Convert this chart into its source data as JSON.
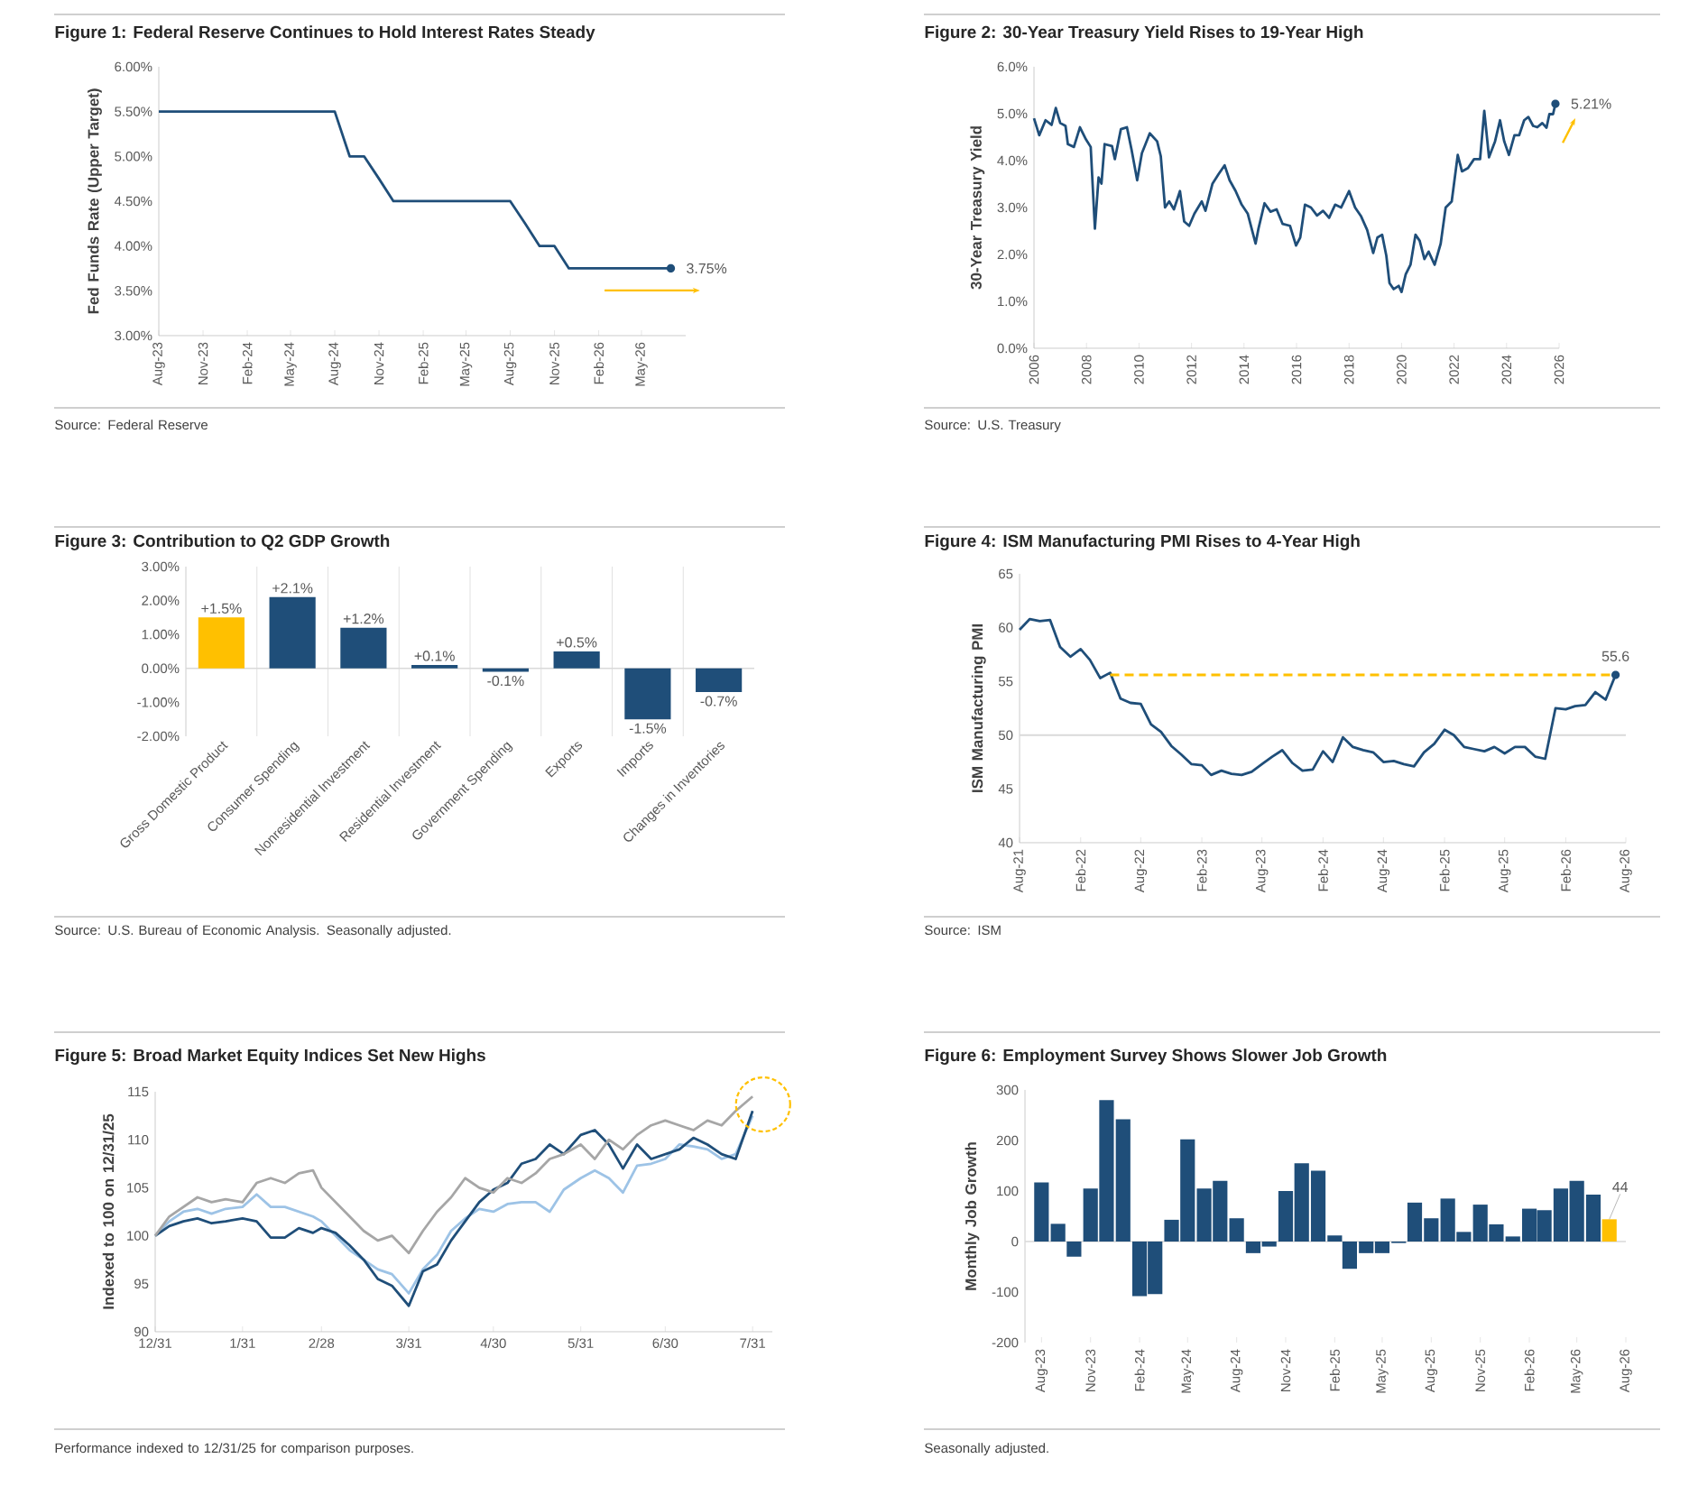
{
  "chart_data": [
    {
      "type": "line",
      "title": "Figure 1: Federal Reserve Continues to Hold Interest Rates Steady",
      "ylabel": "Fed Funds Rate (Upper Target)",
      "x": [
        "2023-08",
        "2023-09",
        "2023-10",
        "2023-11",
        "2023-12",
        "2024-01",
        "2024-02",
        "2024-03",
        "2024-04",
        "2024-05",
        "2024-06",
        "2024-07",
        "2024-08",
        "2024-09",
        "2024-10",
        "2024-11",
        "2024-12",
        "2025-01",
        "2025-02",
        "2025-03",
        "2025-04",
        "2025-05",
        "2025-06",
        "2025-07",
        "2025-08",
        "2025-09",
        "2025-10",
        "2025-11",
        "2025-12",
        "2026-01",
        "2026-02",
        "2026-03",
        "2026-04",
        "2026-05",
        "2026-06",
        "2026-07"
      ],
      "series": [
        {
          "color": "#1f4e79",
          "values": [
            5.5,
            5.5,
            5.5,
            5.5,
            5.5,
            5.5,
            5.5,
            5.5,
            5.5,
            5.5,
            5.5,
            5.5,
            5.5,
            5.0,
            5.0,
            4.75,
            4.5,
            4.5,
            4.5,
            4.5,
            4.5,
            4.5,
            4.5,
            4.5,
            4.5,
            4.25,
            4.0,
            4.0,
            3.75,
            3.75,
            3.75,
            3.75,
            3.75,
            3.75,
            3.75,
            3.75
          ]
        }
      ],
      "xlim": [
        "2023-08",
        "2026-08"
      ],
      "xticks": [
        {
          "value": "2023-08",
          "label": "Aug-23"
        },
        {
          "value": "2023-11",
          "label": "Nov-23"
        },
        {
          "value": "2024-02",
          "label": "Feb-24"
        },
        {
          "value": "2024-05",
          "label": "May-24"
        },
        {
          "value": "2024-08",
          "label": "Aug-24"
        },
        {
          "value": "2024-11",
          "label": "Nov-24"
        },
        {
          "value": "2025-02",
          "label": "Feb-25"
        },
        {
          "value": "2025-05",
          "label": "May-25"
        },
        {
          "value": "2025-08",
          "label": "Aug-25"
        },
        {
          "value": "2025-11",
          "label": "Nov-25"
        },
        {
          "value": "2026-02",
          "label": "Feb-26"
        },
        {
          "value": "2026-05",
          "label": "May-26"
        }
      ],
      "ylim": [
        3,
        6
      ],
      "yticks": [
        {
          "value": 3,
          "label": "3.00%"
        },
        {
          "value": 3.5,
          "label": "3.50%"
        },
        {
          "value": 4,
          "label": "4.00%"
        },
        {
          "value": 4.5,
          "label": "4.50%"
        },
        {
          "value": 5,
          "label": "5.00%"
        },
        {
          "value": 5.5,
          "label": "5.50%"
        },
        {
          "value": 6,
          "label": "6.00%"
        }
      ],
      "annotations": [
        {
          "text": "3.75%",
          "x": "2026-07",
          "y": 3.75
        },
        "Source: Federal Reserve"
      ]
    },
    {
      "type": "line",
      "title": "Figure 2: 30-Year Treasury Yield Rises to 19-Year High",
      "ylabel": "30-Year Treasury Yield",
      "x": [
        2006.0,
        2006.2,
        2006.44,
        2006.67,
        2006.83,
        2007.0,
        2007.2,
        2007.29,
        2007.52,
        2007.75,
        2007.98,
        2008.16,
        2008.32,
        2008.46,
        2008.57,
        2008.69,
        2008.97,
        2009.08,
        2009.31,
        2009.54,
        2009.72,
        2009.93,
        2010.11,
        2010.41,
        2010.69,
        2010.83,
        2010.99,
        2011.15,
        2011.33,
        2011.56,
        2011.72,
        2011.91,
        2012.11,
        2012.39,
        2012.53,
        2012.8,
        2013.03,
        2013.26,
        2013.45,
        2013.68,
        2013.91,
        2014.14,
        2014.44,
        2014.55,
        2014.78,
        2015.01,
        2015.24,
        2015.47,
        2015.75,
        2015.98,
        2016.14,
        2016.32,
        2016.55,
        2016.78,
        2017.01,
        2017.24,
        2017.47,
        2017.7,
        2018.0,
        2018.23,
        2018.46,
        2018.69,
        2018.92,
        2019.08,
        2019.26,
        2019.42,
        2019.54,
        2019.7,
        2019.89,
        2020.0,
        2020.16,
        2020.34,
        2020.53,
        2020.69,
        2020.87,
        2021.03,
        2021.26,
        2021.49,
        2021.68,
        2021.91,
        2022.14,
        2022.3,
        2022.53,
        2022.76,
        2022.99,
        2023.15,
        2023.33,
        2023.56,
        2023.75,
        2023.91,
        2024.09,
        2024.3,
        2024.48,
        2024.67,
        2024.83,
        2025.01,
        2025.17,
        2025.36,
        2025.52,
        2025.63,
        2025.77,
        2025.86
      ],
      "series": [
        {
          "color": "#1f4e79",
          "values": [
            4.9,
            4.54,
            4.86,
            4.76,
            5.12,
            4.8,
            4.74,
            4.35,
            4.29,
            4.71,
            4.45,
            4.29,
            2.55,
            3.64,
            3.51,
            4.35,
            4.31,
            4.03,
            4.67,
            4.71,
            4.22,
            3.58,
            4.16,
            4.58,
            4.41,
            4.09,
            3.0,
            3.13,
            2.96,
            3.35,
            2.7,
            2.61,
            2.87,
            3.13,
            2.93,
            3.51,
            3.71,
            3.9,
            3.58,
            3.35,
            3.06,
            2.87,
            2.23,
            2.55,
            3.09,
            2.91,
            2.96,
            2.65,
            2.61,
            2.19,
            2.36,
            3.06,
            3.0,
            2.83,
            2.93,
            2.78,
            3.06,
            3.0,
            3.35,
            3.0,
            2.81,
            2.52,
            2.03,
            2.36,
            2.42,
            1.97,
            1.39,
            1.26,
            1.33,
            1.2,
            1.58,
            1.78,
            2.42,
            2.29,
            1.9,
            2.06,
            1.78,
            2.23,
            3.0,
            3.13,
            4.12,
            3.77,
            3.84,
            4.03,
            4.03,
            5.06,
            4.07,
            4.41,
            4.86,
            4.41,
            4.12,
            4.54,
            4.54,
            4.86,
            4.93,
            4.74,
            4.71,
            4.8,
            4.7,
            4.99,
            4.99,
            5.21
          ]
        }
      ],
      "xlim": [
        2006,
        2026
      ],
      "xticks": [
        2006,
        2008,
        2010,
        2012,
        2014,
        2016,
        2018,
        2020,
        2022,
        2024,
        2026
      ],
      "ylim": [
        0,
        6
      ],
      "yticks": [
        {
          "value": 0,
          "label": "0.0%"
        },
        {
          "value": 1,
          "label": "1.0%"
        },
        {
          "value": 2,
          "label": "2.0%"
        },
        {
          "value": 3,
          "label": "3.0%"
        },
        {
          "value": 4,
          "label": "4.0%"
        },
        {
          "value": 5,
          "label": "5.0%"
        },
        {
          "value": 6,
          "label": "6.0%"
        }
      ],
      "annotations": [
        {
          "text": "5.21%",
          "x": 2025.86,
          "y": 5.21
        },
        "Source: U.S. Treasury"
      ]
    },
    {
      "type": "bar",
      "title": "Figure 3: Contribution to Q2 GDP Growth",
      "categories": [
        "Gross Domestic Product",
        "Consumer Spending",
        "Nonresidential Investment",
        "Residential Investment",
        "Government Spending",
        "Exports",
        "Imports",
        "Changes in Inventories"
      ],
      "values": [
        1.5,
        2.1,
        1.2,
        0.1,
        -0.1,
        0.5,
        -1.5,
        -0.7
      ],
      "colors": [
        "#ffc000",
        "#1f4e79",
        "#1f4e79",
        "#1f4e79",
        "#1f4e79",
        "#1f4e79",
        "#1f4e79",
        "#1f4e79"
      ],
      "value_labels": [
        "+1.5%",
        "+2.1%",
        "+1.2%",
        "+0.1%",
        "-0.1%",
        "+0.5%",
        "-1.5%",
        "-0.7%"
      ],
      "ylim": [
        -2,
        3
      ],
      "yticks": [
        {
          "value": -2,
          "label": "-2.00%"
        },
        {
          "value": -1,
          "label": "-1.00%"
        },
        {
          "value": 0,
          "label": "0.00%"
        },
        {
          "value": 1,
          "label": "1.00%"
        },
        {
          "value": 2,
          "label": "2.00%"
        },
        {
          "value": 3,
          "label": "3.00%"
        }
      ],
      "grid": "x",
      "annotations": [
        "Source: U.S. Bureau of Economic Analysis. Seasonally adjusted."
      ]
    },
    {
      "type": "line",
      "title": "Figure 4: ISM Manufacturing PMI Rises to 4-Year High",
      "ylabel": "ISM Manufacturing PMI",
      "x": [
        "2021-08",
        "2021-09",
        "2021-10",
        "2021-11",
        "2021-12",
        "2022-01",
        "2022-02",
        "2022-03",
        "2022-04",
        "2022-05",
        "2022-06",
        "2022-07",
        "2022-08",
        "2022-09",
        "2022-10",
        "2022-11",
        "2022-12",
        "2023-01",
        "2023-02",
        "2023-03",
        "2023-04",
        "2023-05",
        "2023-06",
        "2023-07",
        "2023-08",
        "2023-09",
        "2023-10",
        "2023-11",
        "2023-12",
        "2024-01",
        "2024-02",
        "2024-03",
        "2024-04",
        "2024-05",
        "2024-06",
        "2024-07",
        "2024-08",
        "2024-09",
        "2024-10",
        "2024-11",
        "2024-12",
        "2025-01",
        "2025-02",
        "2025-03",
        "2025-04",
        "2025-05",
        "2025-06",
        "2025-07",
        "2025-08",
        "2025-09",
        "2025-10",
        "2025-11",
        "2025-12",
        "2026-01",
        "2026-02",
        "2026-03",
        "2026-04",
        "2026-05",
        "2026-06",
        "2026-07"
      ],
      "series": [
        {
          "color": "#1f4e79",
          "values": [
            59.8,
            60.8,
            60.6,
            60.7,
            58.2,
            57.3,
            58.0,
            57.0,
            55.3,
            55.8,
            53.4,
            53.0,
            52.9,
            51.0,
            50.3,
            49.0,
            48.2,
            47.3,
            47.2,
            46.3,
            46.7,
            46.4,
            46.3,
            46.6,
            47.3,
            48.0,
            48.6,
            47.4,
            46.7,
            46.8,
            48.5,
            47.5,
            49.8,
            48.9,
            48.6,
            48.4,
            47.5,
            47.6,
            47.3,
            47.1,
            48.4,
            49.2,
            50.5,
            50.0,
            48.9,
            48.7,
            48.5,
            48.9,
            48.3,
            48.9,
            48.9,
            48.0,
            47.8,
            52.5,
            52.4,
            52.7,
            52.8,
            54.0,
            53.3,
            55.6
          ]
        },
        {
          "type": "line",
          "x": [
            "2022-05",
            "2026-07"
          ],
          "values": [
            55.6,
            55.6
          ],
          "color": "#ffc000",
          "line_style": "dashed"
        }
      ],
      "xlim": [
        "2021-08",
        "2026-08"
      ],
      "xticks": [
        {
          "value": "2021-08",
          "label": "Aug-21"
        },
        {
          "value": "2022-02",
          "label": "Feb-22"
        },
        {
          "value": "2022-08",
          "label": "Aug-22"
        },
        {
          "value": "2023-02",
          "label": "Feb-23"
        },
        {
          "value": "2023-08",
          "label": "Aug-23"
        },
        {
          "value": "2024-02",
          "label": "Feb-24"
        },
        {
          "value": "2024-08",
          "label": "Aug-24"
        },
        {
          "value": "2025-02",
          "label": "Feb-25"
        },
        {
          "value": "2025-08",
          "label": "Aug-25"
        },
        {
          "value": "2026-02",
          "label": "Feb-26"
        },
        {
          "value": "2026-08",
          "label": "Aug-26"
        }
      ],
      "ylim": [
        40,
        65
      ],
      "yticks": [
        40,
        45,
        50,
        55,
        60,
        65
      ],
      "ref_lines": [
        {
          "axis": "y",
          "value": 50,
          "color": "#d9d9d9"
        }
      ],
      "annotations": [
        {
          "text": "55.6",
          "x": "2026-07",
          "y": 55.6
        },
        "Source: ISM"
      ]
    },
    {
      "type": "line",
      "title": "Figure 5: Broad Market Equity Indices Set New Highs",
      "ylabel": "Indexed to 100 on 12/31/25",
      "x": [
        "2025-12-31",
        "2026-01-05",
        "2026-01-10",
        "2026-01-15",
        "2026-01-20",
        "2026-01-25",
        "2026-01-31",
        "2026-02-05",
        "2026-02-10",
        "2026-02-15",
        "2026-02-20",
        "2026-02-25",
        "2026-02-28",
        "2026-03-05",
        "2026-03-10",
        "2026-03-15",
        "2026-03-20",
        "2026-03-25",
        "2026-03-31",
        "2026-04-05",
        "2026-04-10",
        "2026-04-15",
        "2026-04-20",
        "2026-04-25",
        "2026-04-30",
        "2026-05-05",
        "2026-05-10",
        "2026-05-15",
        "2026-05-20",
        "2026-05-25",
        "2026-05-31",
        "2026-06-05",
        "2026-06-10",
        "2026-06-15",
        "2026-06-20",
        "2026-06-25",
        "2026-06-30",
        "2026-07-05",
        "2026-07-10",
        "2026-07-15",
        "2026-07-20",
        "2026-07-25",
        "2026-07-31"
      ],
      "series": [
        {
          "color": "#9dc3e6",
          "values": [
            100,
            101.5,
            102.5,
            102.8,
            102.3,
            102.8,
            103.0,
            104.3,
            103.0,
            103.0,
            102.5,
            102.0,
            101.5,
            100.0,
            98.5,
            97.5,
            96.5,
            96.0,
            94.0,
            96.5,
            98.0,
            100.5,
            101.8,
            102.8,
            102.5,
            103.3,
            103.5,
            103.5,
            102.5,
            104.8,
            106.0,
            106.8,
            106.0,
            104.5,
            107.3,
            107.5,
            108.0,
            109.5,
            109.3,
            109.0,
            108.0,
            108.5,
            112.5
          ]
        },
        {
          "color": "#1f4e79",
          "values": [
            100,
            101.0,
            101.5,
            101.8,
            101.3,
            101.5,
            101.8,
            101.5,
            99.8,
            99.8,
            100.8,
            100.3,
            100.8,
            100.3,
            99.0,
            97.5,
            95.5,
            94.8,
            92.7,
            96.3,
            97.0,
            99.5,
            101.5,
            103.5,
            104.8,
            105.5,
            107.5,
            108.0,
            109.5,
            108.5,
            110.5,
            111.0,
            109.5,
            107.0,
            109.5,
            108.0,
            108.5,
            109.0,
            110.2,
            109.5,
            108.5,
            108.0,
            113.0
          ]
        },
        {
          "color": "#a6a6a6",
          "values": [
            100,
            102.0,
            103.0,
            104.0,
            103.5,
            103.8,
            103.5,
            105.5,
            106.0,
            105.5,
            106.5,
            106.8,
            105.0,
            103.5,
            102.0,
            100.5,
            99.5,
            100.0,
            98.2,
            100.5,
            102.5,
            104.0,
            106.0,
            105.0,
            104.5,
            106.0,
            105.5,
            106.5,
            108.0,
            108.5,
            109.5,
            108.0,
            110.0,
            109.0,
            110.5,
            111.5,
            112.0,
            111.5,
            111.0,
            112.0,
            111.5,
            113.0,
            114.5
          ]
        }
      ],
      "xlim": [
        "2025-12-31",
        "2026-08-07"
      ],
      "xticks": [
        {
          "value": "2025-12-31",
          "label": "12/31"
        },
        {
          "value": "2026-01-31",
          "label": "1/31"
        },
        {
          "value": "2026-02-28",
          "label": "2/28"
        },
        {
          "value": "2026-03-31",
          "label": "3/31"
        },
        {
          "value": "2026-04-30",
          "label": "4/30"
        },
        {
          "value": "2026-05-31",
          "label": "5/31"
        },
        {
          "value": "2026-06-30",
          "label": "6/30"
        },
        {
          "value": "2026-07-31",
          "label": "7/31"
        }
      ],
      "ylim": [
        90,
        115
      ],
      "yticks": [
        90,
        95,
        100,
        105,
        110,
        115
      ],
      "annotations": [
        "Performance indexed to 12/31/25 for comparison purposes."
      ]
    },
    {
      "type": "bar",
      "title": "Figure 6: Employment Survey Shows Slower Job Growth",
      "ylabel": "Monthly Job Growth",
      "x": [
        "2023-08",
        "2023-09",
        "2023-10",
        "2023-11",
        "2023-12",
        "2024-01",
        "2024-02",
        "2024-03",
        "2024-04",
        "2024-05",
        "2024-06",
        "2024-07",
        "2024-08",
        "2024-09",
        "2024-10",
        "2024-11",
        "2024-12",
        "2025-01",
        "2025-02",
        "2025-03",
        "2025-04",
        "2025-05",
        "2025-06",
        "2025-07",
        "2025-08",
        "2025-09",
        "2025-10",
        "2025-11",
        "2025-12",
        "2026-01",
        "2026-02",
        "2026-03",
        "2026-04",
        "2026-05",
        "2026-06",
        "2026-07"
      ],
      "values": [
        117,
        35,
        -30,
        105,
        280,
        242,
        -108,
        -104,
        43,
        202,
        105,
        120,
        46,
        -23,
        -10,
        100,
        155,
        140,
        12,
        -54,
        -23,
        -23,
        -3,
        77,
        46,
        85,
        19,
        73,
        34,
        10,
        65,
        62,
        105,
        120,
        93,
        44
      ],
      "colors": [
        "#1f4e79",
        "#1f4e79",
        "#1f4e79",
        "#1f4e79",
        "#1f4e79",
        "#1f4e79",
        "#1f4e79",
        "#1f4e79",
        "#1f4e79",
        "#1f4e79",
        "#1f4e79",
        "#1f4e79",
        "#1f4e79",
        "#1f4e79",
        "#1f4e79",
        "#1f4e79",
        "#1f4e79",
        "#1f4e79",
        "#1f4e79",
        "#1f4e79",
        "#1f4e79",
        "#1f4e79",
        "#1f4e79",
        "#1f4e79",
        "#1f4e79",
        "#1f4e79",
        "#1f4e79",
        "#1f4e79",
        "#1f4e79",
        "#1f4e79",
        "#1f4e79",
        "#1f4e79",
        "#1f4e79",
        "#1f4e79",
        "#1f4e79",
        "#ffc000"
      ],
      "value_labels": [
        null,
        null,
        null,
        null,
        null,
        null,
        null,
        null,
        null,
        null,
        null,
        null,
        null,
        null,
        null,
        null,
        null,
        null,
        null,
        null,
        null,
        null,
        null,
        null,
        null,
        null,
        null,
        null,
        null,
        null,
        null,
        null,
        null,
        null,
        null,
        "44"
      ],
      "xlim": [
        "2023-07",
        "2026-08"
      ],
      "xticks": [
        {
          "value": "2023-08",
          "label": "Aug-23"
        },
        {
          "value": "2023-11",
          "label": "Nov-23"
        },
        {
          "value": "2024-02",
          "label": "Feb-24"
        },
        {
          "value": "2024-05",
          "label": "May-24"
        },
        {
          "value": "2024-08",
          "label": "Aug-24"
        },
        {
          "value": "2024-11",
          "label": "Nov-24"
        },
        {
          "value": "2025-02",
          "label": "Feb-25"
        },
        {
          "value": "2025-05",
          "label": "May-25"
        },
        {
          "value": "2025-08",
          "label": "Aug-25"
        },
        {
          "value": "2025-11",
          "label": "Nov-25"
        },
        {
          "value": "2026-02",
          "label": "Feb-26"
        },
        {
          "value": "2026-05",
          "label": "May-26"
        },
        {
          "value": "2026-08",
          "label": "Aug-26"
        }
      ],
      "ylim": [
        -200,
        300
      ],
      "yticks": [
        -200,
        -100,
        0,
        100,
        200,
        300
      ],
      "annotations": [
        "Seasonally adjusted."
      ]
    }
  ]
}
